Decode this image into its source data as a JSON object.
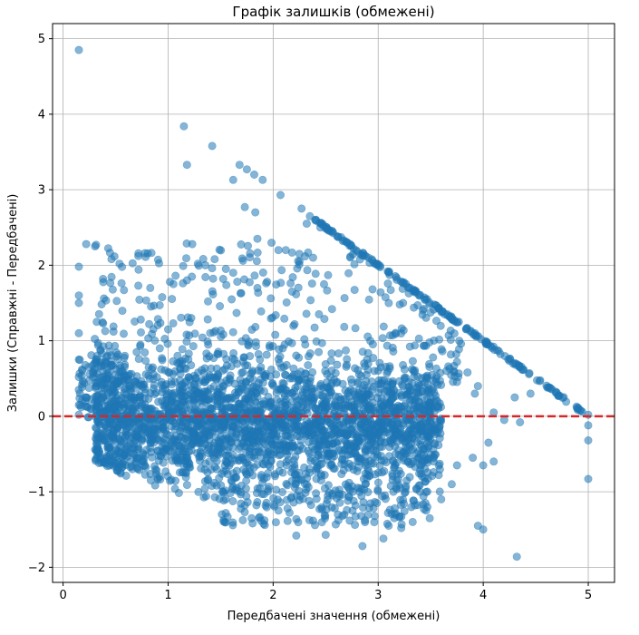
{
  "chart_data": {
    "type": "scatter",
    "title": "Графік залишків (обмежені)",
    "xlabel": "Передбачені значення (обмежені)",
    "ylabel": "Залишки (Справжні - Передбачені)",
    "xlim": [
      -0.1,
      5.25
    ],
    "ylim": [
      -2.2,
      5.2
    ],
    "xticks": [
      0,
      1,
      2,
      3,
      4,
      5
    ],
    "yticks": [
      -2,
      -1,
      0,
      1,
      2,
      3,
      4,
      5
    ],
    "grid": true,
    "reference_line": {
      "y": 0,
      "style": "dashed",
      "color": "#d62728"
    },
    "point_color": "#1f77b4",
    "point_alpha": 0.55,
    "series": [
      {
        "values": [
          [
            0.15,
            4.85
          ],
          [
            1.15,
            3.84
          ],
          [
            1.42,
            3.58
          ],
          [
            1.18,
            3.33
          ],
          [
            1.68,
            3.33
          ],
          [
            1.75,
            3.27
          ],
          [
            1.82,
            3.2
          ],
          [
            1.9,
            3.13
          ],
          [
            1.62,
            3.13
          ],
          [
            2.07,
            2.93
          ],
          [
            1.73,
            2.77
          ],
          [
            1.83,
            2.7
          ],
          [
            2.27,
            2.75
          ],
          [
            2.35,
            2.65
          ],
          [
            2.4,
            2.6
          ],
          [
            2.32,
            2.55
          ],
          [
            2.45,
            2.5
          ],
          [
            2.52,
            2.47
          ],
          [
            0.22,
            2.28
          ],
          [
            0.15,
            1.98
          ],
          [
            1.85,
            2.35
          ],
          [
            2.05,
            2.2
          ],
          [
            2.12,
            2.2
          ],
          [
            2.25,
            2.15
          ],
          [
            2.38,
            2.1
          ],
          [
            0.15,
            1.6
          ],
          [
            0.15,
            1.5
          ],
          [
            0.58,
            1.67
          ],
          [
            0.92,
            1.47
          ],
          [
            1.05,
            1.75
          ],
          [
            1.18,
            1.8
          ],
          [
            1.55,
            1.95
          ],
          [
            1.62,
            1.9
          ],
          [
            1.85,
            1.7
          ],
          [
            0.32,
            1.25
          ],
          [
            0.48,
            1.12
          ],
          [
            0.74,
            1.28
          ],
          [
            0.82,
            1.22
          ],
          [
            1.0,
            1.15
          ],
          [
            1.22,
            1.3
          ],
          [
            1.38,
            1.52
          ],
          [
            0.15,
            1.1
          ],
          [
            0.15,
            0.75
          ],
          [
            0.15,
            0.52
          ],
          [
            0.15,
            0.35
          ],
          [
            0.15,
            0.15
          ],
          [
            0.15,
            0.02
          ],
          [
            0.18,
            0.62
          ],
          [
            0.2,
            0.44
          ],
          [
            4.32,
            -1.86
          ],
          [
            2.85,
            -1.72
          ],
          [
            3.05,
            -1.62
          ],
          [
            2.22,
            -1.58
          ],
          [
            2.5,
            -1.57
          ],
          [
            3.1,
            -1.45
          ],
          [
            3.22,
            -1.48
          ],
          [
            3.95,
            -1.45
          ],
          [
            4.0,
            -1.5
          ],
          [
            3.35,
            -1.18
          ],
          [
            3.45,
            -1.15
          ],
          [
            3.6,
            -1.1
          ],
          [
            3.7,
            -0.9
          ],
          [
            3.75,
            -0.65
          ],
          [
            3.9,
            -0.55
          ],
          [
            4.0,
            -0.65
          ],
          [
            4.1,
            -0.6
          ],
          [
            4.05,
            -0.35
          ],
          [
            4.2,
            -0.05
          ],
          [
            4.35,
            -0.08
          ],
          [
            4.1,
            0.05
          ],
          [
            4.3,
            0.25
          ],
          [
            4.45,
            0.3
          ],
          [
            5.0,
            0.02
          ],
          [
            5.0,
            -0.12
          ],
          [
            5.0,
            -0.32
          ],
          [
            5.0,
            -0.83
          ],
          [
            3.92,
            0.3
          ],
          [
            3.95,
            0.4
          ],
          [
            3.85,
            0.58
          ],
          [
            3.75,
            0.72
          ],
          [
            3.65,
            0.6
          ],
          [
            3.55,
            0.45
          ],
          [
            3.5,
            0.25
          ],
          [
            3.4,
            0.1
          ],
          [
            3.45,
            -0.2
          ]
        ]
      }
    ]
  }
}
